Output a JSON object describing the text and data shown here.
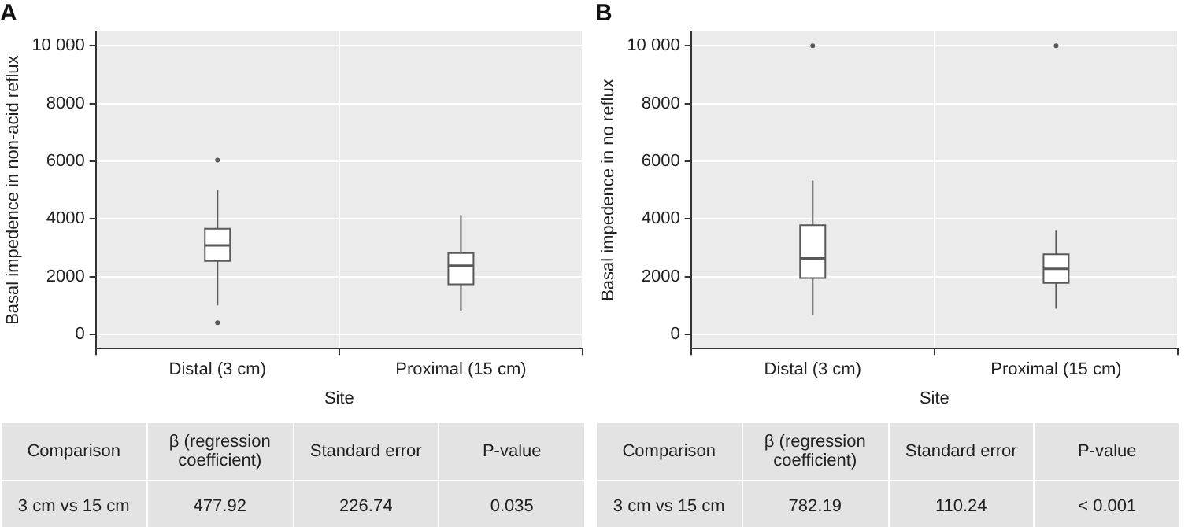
{
  "chart_data": [
    {
      "type": "box",
      "title": "A",
      "xlabel": "Site",
      "ylabel": "Basal impedence in non-acid reflux",
      "categories": [
        "Distal (3 cm)",
        "Proximal (15 cm)"
      ],
      "series": [
        {
          "color": "#ffffff",
          "boxes": [
            {
              "low": 1000,
              "q1": 2540,
              "median": 3080,
              "q3": 3660,
              "high": 5000,
              "outliers": [
                6040,
                400
              ]
            },
            {
              "low": 790,
              "q1": 1730,
              "median": 2380,
              "q3": 2810,
              "high": 4130
            }
          ]
        }
      ],
      "ylim": [
        -500,
        10500
      ],
      "yticks": [
        0,
        2000,
        4000,
        6000,
        8000,
        {
          "value": 10000,
          "label": "10 000"
        }
      ],
      "grid": true,
      "annotations": [
        "Comparison",
        "β (regression coefficient)",
        "Standard error",
        "P-value",
        "3 cm vs 15 cm",
        "477.92",
        "226.74",
        "0.035"
      ]
    },
    {
      "type": "box",
      "title": "B",
      "xlabel": "Site",
      "ylabel": "Basal impedence in no reflux",
      "categories": [
        "Distal (3 cm)",
        "Proximal (15 cm)"
      ],
      "series": [
        {
          "color": "#ffffff",
          "boxes": [
            {
              "low": 670,
              "q1": 1950,
              "median": 2630,
              "q3": 3780,
              "high": 5330,
              "outliers": [
                10000
              ]
            },
            {
              "low": 880,
              "q1": 1780,
              "median": 2270,
              "q3": 2770,
              "high": 3590,
              "outliers": [
                10000
              ]
            }
          ]
        }
      ],
      "ylim": [
        -500,
        10500
      ],
      "yticks": [
        0,
        2000,
        4000,
        6000,
        8000,
        {
          "value": 10000,
          "label": "10 000"
        }
      ],
      "grid": true,
      "annotations": [
        "Comparison",
        "β (regression coefficient)",
        "Standard error",
        "P-value",
        "3 cm vs 15 cm",
        "782.19",
        "110.24",
        "< 0.001"
      ]
    }
  ]
}
